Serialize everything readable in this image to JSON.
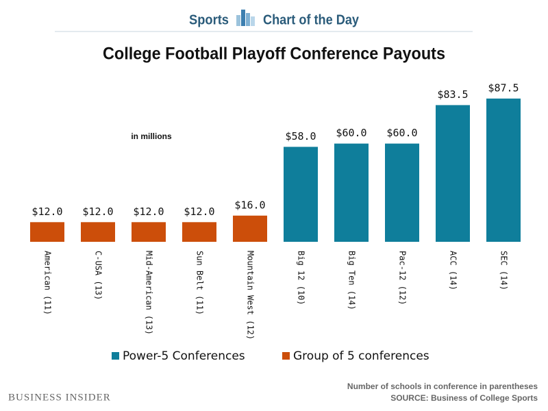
{
  "header": {
    "section": "Sports",
    "subtitle": "Chart of the Day"
  },
  "footer": {
    "publisher": "BUSINESS INSIDER",
    "note": "Number of schools in conference in parentheses",
    "source": "SOURCE: Business of College Sports"
  },
  "chart_data": {
    "type": "bar",
    "title": "College Football Playoff Conference Payouts",
    "subtitle": "in millions",
    "categories": [
      "American (11)",
      "C-USA (13)",
      "Mid-American (13)",
      "Sun Belt (11)",
      "Mountain West (12)",
      "Big 12 (10)",
      "Big Ten (14)",
      "Pac-12 (12)",
      "ACC (14)",
      "SEC (14)"
    ],
    "series": [
      {
        "name": "Power-5 Conferences",
        "color": "#0f7e9b",
        "values": [
          null,
          null,
          null,
          null,
          null,
          58,
          60,
          60,
          83.5,
          87.5
        ],
        "value_labels": [
          null,
          null,
          null,
          null,
          null,
          "$58.0",
          "$60.0",
          "$60.0",
          "$83.5",
          "$87.5"
        ]
      },
      {
        "name": "Group of 5 conferences",
        "color": "#cc4e0a",
        "values": [
          12,
          12,
          12,
          12,
          16,
          null,
          null,
          null,
          null,
          null
        ],
        "value_labels": [
          "$12.0",
          "$12.0",
          "$12.0",
          "$12.0",
          "$16.0",
          null,
          null,
          null,
          null,
          null
        ]
      }
    ],
    "legend": "bottom"
  }
}
